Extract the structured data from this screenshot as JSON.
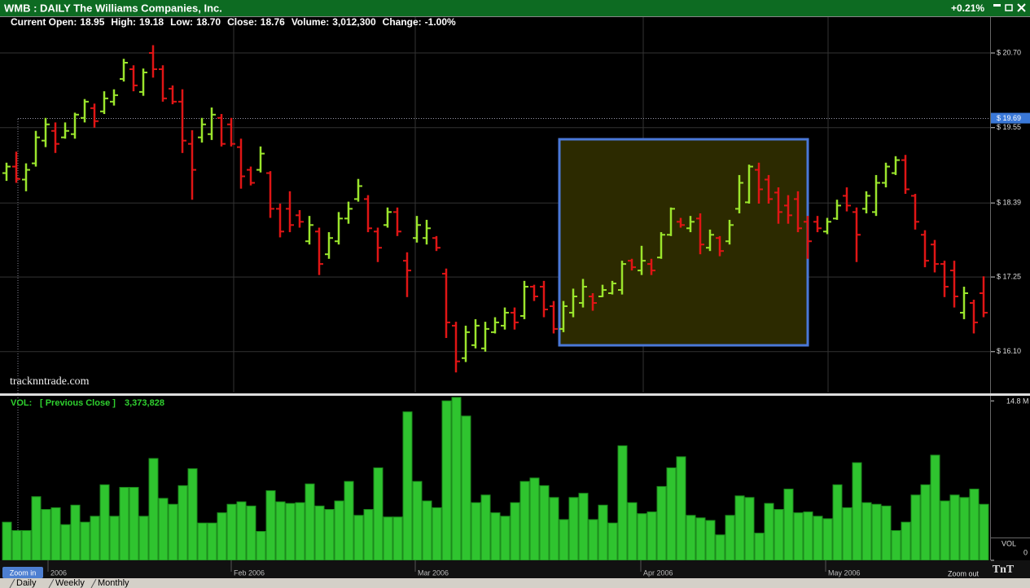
{
  "window": {
    "title": "WMB : DAILY The Williams Companies, Inc.",
    "change": "+0.21%"
  },
  "info": [
    {
      "label": "Current Open:",
      "value": "18.95"
    },
    {
      "label": "High:",
      "value": "19.18"
    },
    {
      "label": "Low:",
      "value": "18.70"
    },
    {
      "label": "Close:",
      "value": "18.76"
    },
    {
      "label": "Volume:",
      "value": "3,012,300"
    },
    {
      "label": "Change:",
      "value": "-1.00%"
    }
  ],
  "watermark": "tracknntrade.com",
  "chart_data": [
    {
      "type": "ohlc",
      "up_color": "#9be52c",
      "down_color": "#e01515",
      "ylim": [
        15.47,
        21.29
      ],
      "yticks": [
        {
          "value": 20.7,
          "label": "$ 20.70"
        },
        {
          "value": 19.55,
          "label": "$ 19.55"
        },
        {
          "value": 18.39,
          "label": "$ 18.39"
        },
        {
          "value": 17.25,
          "label": "$ 17.25"
        },
        {
          "value": 16.1,
          "label": "$ 16.10"
        }
      ],
      "grid": true,
      "last_price": {
        "value": 19.69,
        "label": "$ 19.69"
      },
      "open": [
        18.85,
        18.95,
        18.75,
        19.0,
        19.35,
        19.5,
        19.4,
        19.45,
        19.7,
        19.85,
        19.8,
        19.95,
        20.3,
        20.45,
        20.1,
        20.7,
        20.45,
        20.15,
        19.95,
        19.3,
        19.4,
        19.45,
        19.7,
        19.6,
        19.25,
        18.9,
        18.9,
        18.85,
        18.3,
        18.3,
        18.2,
        17.8,
        17.95,
        17.6,
        17.8,
        18.15,
        18.45,
        18.45,
        17.95,
        18.05,
        18.25,
        17.5,
        17.85,
        17.85,
        17.85,
        17.3,
        16.5,
        16.0,
        16.2,
        16.15,
        16.4,
        16.5,
        16.7,
        16.65,
        17.1,
        17.1,
        16.8,
        16.45,
        16.7,
        16.85,
        16.95,
        16.95,
        17.0,
        17.05,
        17.5,
        17.35,
        17.45,
        17.55,
        17.9,
        18.1,
        18.0,
        18.15,
        17.7,
        17.85,
        17.8,
        18.3,
        18.4,
        18.9,
        18.75,
        18.55,
        18.35,
        18.45,
        18.1,
        18.1,
        17.95,
        18.15,
        18.5,
        18.25,
        18.3,
        18.25,
        18.7,
        18.85,
        19.05,
        18.5,
        17.9,
        17.75,
        17.45,
        17.35,
        16.7,
        16.85,
        17.0
      ],
      "high": [
        19.01,
        19.18,
        19.0,
        19.5,
        19.7,
        19.63,
        19.63,
        19.78,
        19.99,
        19.92,
        20.11,
        20.14,
        20.61,
        20.51,
        20.46,
        20.82,
        20.51,
        20.2,
        20.14,
        19.51,
        19.7,
        19.86,
        19.76,
        19.7,
        19.38,
        18.95,
        19.26,
        18.88,
        18.38,
        18.57,
        18.28,
        18.19,
        18.01,
        17.94,
        18.25,
        18.41,
        18.76,
        18.51,
        18.01,
        18.32,
        18.32,
        17.63,
        18.19,
        18.13,
        17.88,
        17.38,
        16.56,
        16.5,
        16.6,
        16.56,
        16.63,
        16.78,
        16.78,
        17.19,
        17.13,
        17.19,
        16.88,
        16.88,
        17.07,
        17.22,
        17.0,
        17.13,
        17.19,
        17.5,
        17.53,
        17.73,
        17.53,
        17.94,
        18.32,
        18.16,
        18.19,
        18.23,
        17.98,
        17.88,
        18.13,
        18.82,
        18.98,
        19.01,
        18.82,
        18.63,
        18.51,
        18.57,
        18.19,
        18.19,
        18.16,
        18.44,
        18.63,
        18.32,
        18.57,
        18.82,
        19.01,
        19.11,
        19.13,
        18.53,
        17.97,
        17.82,
        17.5,
        17.5,
        17.1,
        16.9,
        17.26
      ],
      "low": [
        18.73,
        18.7,
        18.57,
        18.95,
        19.25,
        19.16,
        19.38,
        19.38,
        19.63,
        19.55,
        19.76,
        19.89,
        20.26,
        20.11,
        20.04,
        20.32,
        19.95,
        19.91,
        19.16,
        18.44,
        19.32,
        19.36,
        19.26,
        19.26,
        18.61,
        18.66,
        18.86,
        18.16,
        17.86,
        17.94,
        18.01,
        17.75,
        17.28,
        17.53,
        17.75,
        18.07,
        18.41,
        17.94,
        17.48,
        18.01,
        17.88,
        16.94,
        17.78,
        17.75,
        17.65,
        16.31,
        15.78,
        15.94,
        16.15,
        16.1,
        16.38,
        16.44,
        16.44,
        16.6,
        16.88,
        16.63,
        16.38,
        16.4,
        16.63,
        16.78,
        16.73,
        16.94,
        16.98,
        16.98,
        17.35,
        17.28,
        17.28,
        17.53,
        17.88,
        18.01,
        17.94,
        17.6,
        17.65,
        17.57,
        17.75,
        18.23,
        18.38,
        18.38,
        18.38,
        18.07,
        18.07,
        17.94,
        17.53,
        17.94,
        17.91,
        18.13,
        18.26,
        17.48,
        18.23,
        18.19,
        18.63,
        18.82,
        18.53,
        17.98,
        17.4,
        17.32,
        16.94,
        16.78,
        16.6,
        16.38,
        16.63
      ],
      "close": [
        18.95,
        18.76,
        18.9,
        19.4,
        19.6,
        19.3,
        19.5,
        19.75,
        19.95,
        19.65,
        20.0,
        20.05,
        20.55,
        20.2,
        20.4,
        20.45,
        20.0,
        19.95,
        19.35,
        18.9,
        19.6,
        19.75,
        19.3,
        19.3,
        18.8,
        18.7,
        19.15,
        18.3,
        17.95,
        18.05,
        18.1,
        18.05,
        17.45,
        17.85,
        18.15,
        18.3,
        18.65,
        18.0,
        17.7,
        18.25,
        17.95,
        17.35,
        18.05,
        18.0,
        17.7,
        16.55,
        15.95,
        16.4,
        16.5,
        16.45,
        16.55,
        16.7,
        16.55,
        17.1,
        16.95,
        16.75,
        16.45,
        16.8,
        16.95,
        17.1,
        16.85,
        17.05,
        17.15,
        17.45,
        17.4,
        17.5,
        17.35,
        17.9,
        18.3,
        18.05,
        18.1,
        17.75,
        17.9,
        17.65,
        18.05,
        18.7,
        18.95,
        18.6,
        18.45,
        18.25,
        18.2,
        18.0,
        17.8,
        18.0,
        18.1,
        18.35,
        18.35,
        17.9,
        18.5,
        18.7,
        18.95,
        19.05,
        18.6,
        18.1,
        17.5,
        17.45,
        17.1,
        16.95,
        17.0,
        16.55,
        16.7
      ]
    },
    {
      "type": "bar",
      "title": "VOL:",
      "subtitle": "[ Previous Close ]",
      "value_label": "3,373,828",
      "ylabel": "VOL",
      "color": "#2fc42f",
      "ylim": [
        0,
        15.27
      ],
      "yticks": [
        {
          "value": 14.8,
          "label": "14.8 M"
        },
        0
      ],
      "values": [
        3.54,
        2.76,
        2.76,
        5.91,
        4.72,
        4.88,
        3.31,
        5.12,
        3.54,
        4.09,
        7.01,
        4.09,
        6.77,
        6.77,
        4.09,
        9.45,
        5.75,
        5.2,
        6.93,
        8.5,
        3.46,
        3.46,
        4.41,
        5.2,
        5.43,
        5.04,
        2.68,
        6.46,
        5.43,
        5.28,
        5.35,
        7.09,
        5.04,
        4.72,
        5.51,
        7.32,
        4.17,
        4.72,
        8.58,
        4.02,
        4.02,
        13.78,
        7.32,
        5.51,
        4.88,
        14.8,
        15.12,
        13.39,
        5.35,
        6.06,
        4.41,
        4.09,
        5.35,
        7.32,
        7.64,
        6.93,
        5.83,
        3.78,
        5.83,
        6.22,
        3.78,
        5.12,
        3.46,
        10.63,
        5.35,
        4.33,
        4.49,
        6.85,
        8.58,
        9.61,
        4.17,
        3.94,
        3.7,
        2.36,
        4.17,
        5.98,
        5.83,
        2.52,
        5.28,
        4.72,
        6.61,
        4.41,
        4.49,
        4.09,
        3.86,
        7.01,
        4.88,
        9.06,
        5.35,
        5.2,
        5.04,
        2.76,
        3.54,
        6.06,
        7.01,
        9.76,
        5.51,
        6.06,
        5.83,
        6.61,
        5.2
      ]
    }
  ],
  "date_labels": [
    "2006",
    "Feb 2006",
    "Mar 2006",
    "Apr 2006",
    "May 2006"
  ],
  "buttons": {
    "zoom_in": "Zoom in",
    "zoom_out": "Zoom out"
  },
  "logo": "TnT",
  "tabs": [
    "Daily",
    "Weekly",
    "Monthly"
  ]
}
